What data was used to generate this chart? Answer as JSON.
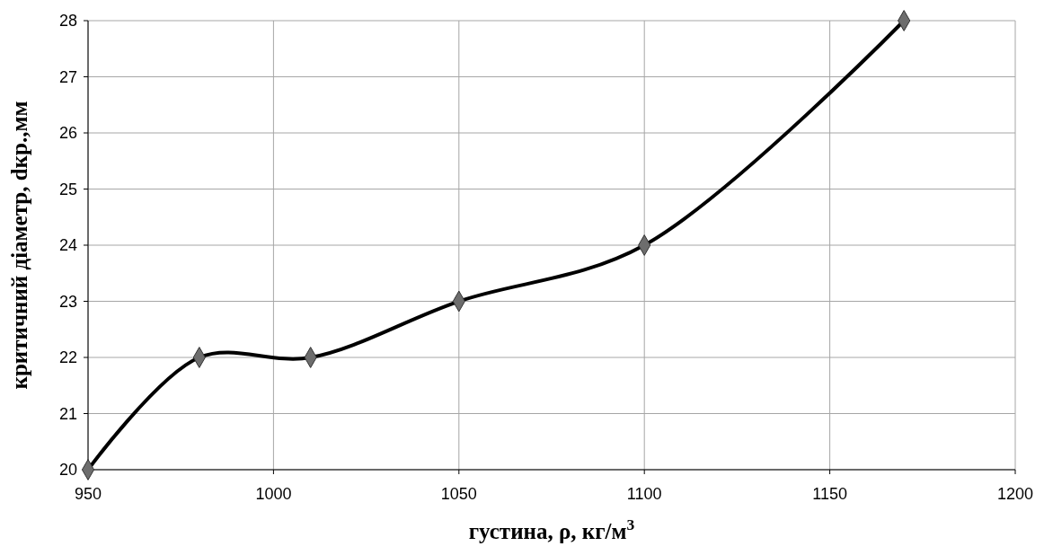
{
  "chart_data": {
    "type": "line",
    "xlabel": "густина, ρ,  кг/м$^{3}$",
    "ylabel": "критичний діаметр, dкр.,мм",
    "x": [
      950,
      980,
      1010,
      1050,
      1100,
      1170
    ],
    "series": [
      {
        "color": "#000000",
        "values": [
          20,
          22,
          22,
          23,
          24,
          28
        ]
      }
    ],
    "xlim": [
      950,
      1200
    ],
    "xticks": [
      950,
      1000,
      1050,
      1100,
      1150,
      1200
    ],
    "ylim": [
      20,
      28
    ],
    "yticks": [
      20,
      21,
      22,
      23,
      24,
      25,
      26,
      27,
      28
    ],
    "grid": true,
    "marker": "diamond",
    "line_style": "solid"
  }
}
